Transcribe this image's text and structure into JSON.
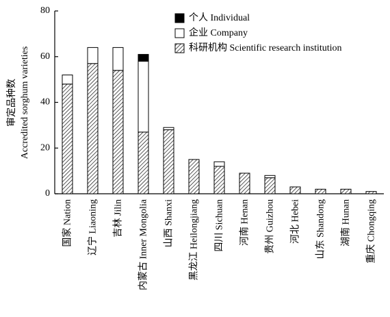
{
  "chart_data": {
    "type": "stacked_bar",
    "y_label": [
      "审定品种数",
      "Accredited sorghum varieties"
    ],
    "categories": [
      "国家 Nation",
      "辽宁 Liaoning",
      "吉林 Jilin",
      "内蒙古 Inner Mongolia",
      "山西 Shanxi",
      "黑龙江 Heilongjiang",
      "四川 Sichuan",
      "河南 Henan",
      "贵州 Guizhou",
      "河北 Hebei",
      "山东 Shandong",
      "湖南 Hunan",
      "重庆 Chongqing"
    ],
    "series": [
      {
        "name": "科研机构 Scientific research institution",
        "color": "#000000",
        "pattern": "hatch",
        "values": [
          48,
          57,
          54,
          27,
          28,
          15,
          12,
          9,
          7,
          3,
          2,
          2,
          1
        ]
      },
      {
        "name": "企业 Company",
        "color": "#ffffff",
        "pattern": "solid",
        "values": [
          4,
          7,
          10,
          31,
          1,
          0,
          2,
          0,
          1,
          0,
          0,
          0,
          0
        ]
      },
      {
        "name": "个人 Individual",
        "color": "#000000",
        "pattern": "solid",
        "values": [
          0,
          0,
          0,
          3,
          0,
          0,
          0,
          0,
          0,
          0,
          0,
          0,
          0
        ]
      }
    ],
    "ylim": [
      0,
      80
    ],
    "yticks": [
      0,
      20,
      40,
      60,
      80
    ]
  }
}
